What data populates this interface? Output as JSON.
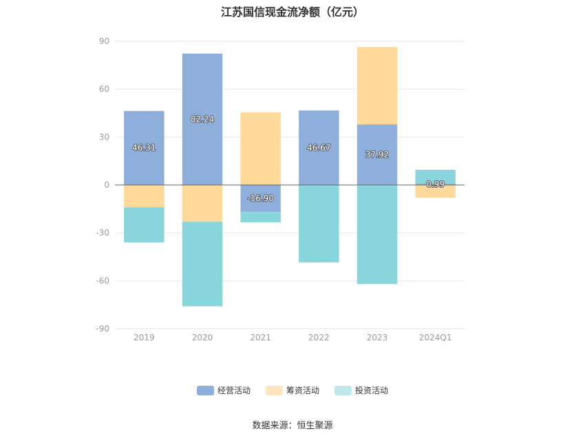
{
  "chart_data": {
    "type": "bar",
    "stacked": true,
    "title": "江苏国信现金流净额（亿元）",
    "categories": [
      "2019",
      "2020",
      "2021",
      "2022",
      "2023",
      "2024Q1"
    ],
    "ylim": [
      -90,
      90
    ],
    "yticks": [
      90,
      60,
      30,
      0,
      -30,
      -60,
      -90
    ],
    "grid": true,
    "legend_position": "bottom",
    "series": [
      {
        "name": "经营活动",
        "color": "#8eaedb",
        "values": [
          46.31,
          82.24,
          -16.9,
          46.67,
          37.92,
          0.99
        ],
        "labels": [
          "46.31",
          "82.24",
          "-16.90",
          "46.67",
          "37.92",
          "0.99"
        ]
      },
      {
        "name": "筹资活动",
        "color": "#ffd99a",
        "values": [
          -14,
          -23,
          45.5,
          0,
          48.5,
          -8
        ]
      },
      {
        "name": "投资活动",
        "color": "#88d6db",
        "values": [
          -22,
          -53,
          -6.5,
          -48.5,
          -62,
          8.5
        ]
      }
    ],
    "source": "数据来源：恒生聚源"
  }
}
